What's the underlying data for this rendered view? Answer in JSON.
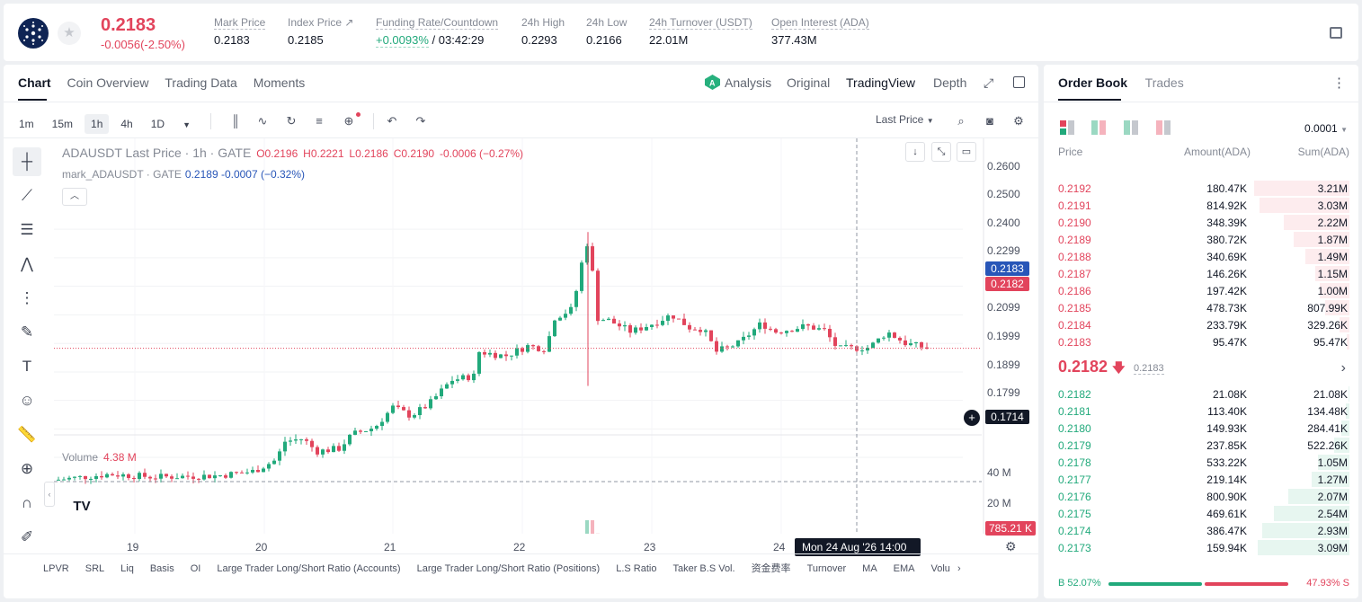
{
  "header": {
    "last_price": "0.2183",
    "change": "-0.0056(-2.50%)",
    "stats": [
      {
        "label": "Mark Price",
        "value": "0.2183"
      },
      {
        "label": "Index Price ↗",
        "value": "0.2185"
      },
      {
        "label": "Funding Rate/Countdown",
        "value": "+0.0093%",
        "value2": "/ 03:42:29"
      },
      {
        "label": "24h High",
        "value": "0.2293"
      },
      {
        "label": "24h Low",
        "value": "0.2166"
      },
      {
        "label": "24h Turnover (USDT)",
        "value": "22.01M"
      },
      {
        "label": "Open Interest (ADA)",
        "value": "377.43M"
      }
    ]
  },
  "chart_tabs": [
    "Chart",
    "Coin Overview",
    "Trading Data",
    "Moments"
  ],
  "view_modes": {
    "analysis": "Analysis",
    "original": "Original",
    "tradingview": "TradingView",
    "depth": "Depth"
  },
  "timeframes": [
    "1m",
    "15m",
    "1h",
    "4h",
    "1D"
  ],
  "price_source": "Last Price",
  "legend": {
    "main": "ADAUSDT Last Price · 1h · GATE",
    "o": "O0.2196",
    "h": "H0.2221",
    "l": "L0.2186",
    "c": "C0.2190",
    "delta": "-0.0006 (−0.27%)",
    "mark_name": "mark_ADAUSDT · GATE",
    "mark_vals": "0.2189 -0.0007 (−0.32%)"
  },
  "volume": {
    "label": "Volume",
    "value": "4.38 M",
    "ticks": [
      "40 M",
      "20 M"
    ],
    "last_tag": "785.21 K"
  },
  "price_axis": {
    "ticks": [
      "0.2600",
      "0.2500",
      "0.2400",
      "0.2299",
      "0.2099",
      "0.1999",
      "0.1899",
      "0.1799"
    ],
    "mark_tag": "0.2183",
    "last_tag": "0.2182",
    "cursor_tag": "0.1714"
  },
  "time_axis": {
    "ticks": [
      "19",
      "20",
      "21",
      "22",
      "23",
      "24"
    ],
    "cursor_label": "Mon 24 Aug '26   14:00"
  },
  "indicators": [
    "LPVR",
    "SRL",
    "Liq",
    "Basis",
    "OI",
    "Large Trader Long/Short Ratio (Accounts)",
    "Large Trader Long/Short Ratio (Positions)",
    "L.S Ratio",
    "Taker B.S Vol.",
    "资金费率",
    "Turnover",
    "MA",
    "EMA",
    "Volu"
  ],
  "orderbook": {
    "tabs": [
      "Order Book",
      "Trades"
    ],
    "precision": "0.0001",
    "headers": {
      "price": "Price",
      "amount": "Amount(ADA)",
      "sum": "Sum(ADA)"
    },
    "asks": [
      {
        "price": "0.2192",
        "amount": "180.47K",
        "sum": "3.21M"
      },
      {
        "price": "0.2191",
        "amount": "814.92K",
        "sum": "3.03M"
      },
      {
        "price": "0.2190",
        "amount": "348.39K",
        "sum": "2.22M"
      },
      {
        "price": "0.2189",
        "amount": "380.72K",
        "sum": "1.87M"
      },
      {
        "price": "0.2188",
        "amount": "340.69K",
        "sum": "1.49M"
      },
      {
        "price": "0.2187",
        "amount": "146.26K",
        "sum": "1.15M"
      },
      {
        "price": "0.2186",
        "amount": "197.42K",
        "sum": "1.00M"
      },
      {
        "price": "0.2185",
        "amount": "478.73K",
        "sum": "807.99K"
      },
      {
        "price": "0.2184",
        "amount": "233.79K",
        "sum": "329.26K"
      },
      {
        "price": "0.2183",
        "amount": "95.47K",
        "sum": "95.47K"
      }
    ],
    "mid": {
      "price": "0.2182",
      "mark": "0.2183"
    },
    "bids": [
      {
        "price": "0.2182",
        "amount": "21.08K",
        "sum": "21.08K"
      },
      {
        "price": "0.2181",
        "amount": "113.40K",
        "sum": "134.48K"
      },
      {
        "price": "0.2180",
        "amount": "149.93K",
        "sum": "284.41K"
      },
      {
        "price": "0.2179",
        "amount": "237.85K",
        "sum": "522.26K"
      },
      {
        "price": "0.2178",
        "amount": "533.22K",
        "sum": "1.05M"
      },
      {
        "price": "0.2177",
        "amount": "219.14K",
        "sum": "1.27M"
      },
      {
        "price": "0.2176",
        "amount": "800.90K",
        "sum": "2.07M"
      },
      {
        "price": "0.2175",
        "amount": "469.61K",
        "sum": "2.54M"
      },
      {
        "price": "0.2174",
        "amount": "386.47K",
        "sum": "2.93M"
      },
      {
        "price": "0.2173",
        "amount": "159.94K",
        "sum": "3.09M"
      }
    ],
    "buy_ratio": "B 52.07%",
    "sell_ratio": "47.93% S",
    "buy_fraction": 0.5207
  },
  "colors": {
    "up": "#21a97b",
    "down": "#e2445c",
    "mark": "#2856b8"
  }
}
